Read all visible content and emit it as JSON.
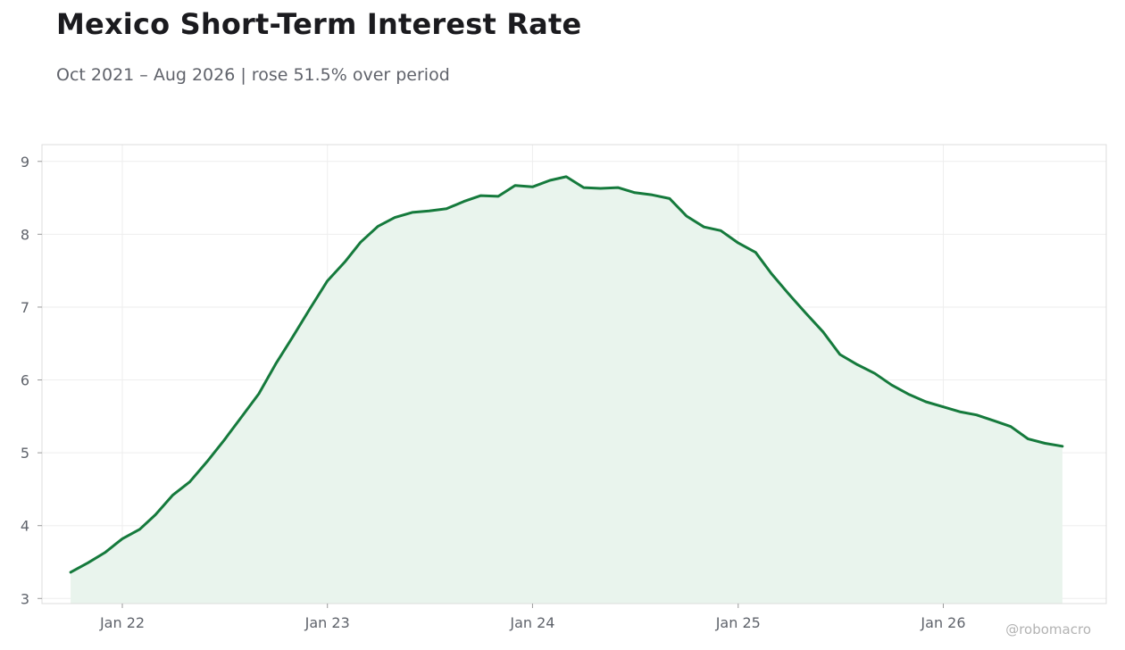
{
  "chart_data": {
    "type": "area",
    "title": "Mexico Short-Term Interest Rate",
    "subtitle": "Oct 2021 – Aug 2026 | rose 51.5% over period",
    "xlabel": "",
    "ylabel": "",
    "x_ticks": [
      {
        "date": "2022-01-01",
        "label": "Jan 22"
      },
      {
        "date": "2023-01-01",
        "label": "Jan 23"
      },
      {
        "date": "2024-01-01",
        "label": "Jan 24"
      },
      {
        "date": "2025-01-01",
        "label": "Jan 25"
      },
      {
        "date": "2026-01-01",
        "label": "Jan 26"
      }
    ],
    "y_ticks": [
      3,
      4,
      5,
      6,
      7,
      8,
      9
    ],
    "xlim": [
      "2021-08-11",
      "2026-10-18"
    ],
    "ylim": [
      2.93,
      9.23
    ],
    "grid": true,
    "legend": "none",
    "series": [
      {
        "color": "#157a3c",
        "fill": "#e9f4ed",
        "points": [
          [
            "2021-10-01",
            3.36
          ],
          [
            "2021-11-01",
            3.49
          ],
          [
            "2021-12-01",
            3.63
          ],
          [
            "2022-01-01",
            3.82
          ],
          [
            "2022-02-01",
            3.95
          ],
          [
            "2022-03-01",
            4.15
          ],
          [
            "2022-04-01",
            4.42
          ],
          [
            "2022-05-01",
            4.6
          ],
          [
            "2022-06-01",
            4.88
          ],
          [
            "2022-07-01",
            5.17
          ],
          [
            "2022-08-01",
            5.49
          ],
          [
            "2022-09-01",
            5.81
          ],
          [
            "2022-10-01",
            6.22
          ],
          [
            "2022-11-01",
            6.6
          ],
          [
            "2022-12-01",
            6.98
          ],
          [
            "2023-01-01",
            7.36
          ],
          [
            "2023-02-01",
            7.62
          ],
          [
            "2023-03-01",
            7.89
          ],
          [
            "2023-04-01",
            8.11
          ],
          [
            "2023-05-01",
            8.23
          ],
          [
            "2023-06-01",
            8.3
          ],
          [
            "2023-07-01",
            8.32
          ],
          [
            "2023-08-01",
            8.35
          ],
          [
            "2023-09-01",
            8.45
          ],
          [
            "2023-10-01",
            8.53
          ],
          [
            "2023-11-01",
            8.52
          ],
          [
            "2023-12-01",
            8.67
          ],
          [
            "2024-01-01",
            8.65
          ],
          [
            "2024-02-01",
            8.74
          ],
          [
            "2024-03-01",
            8.79
          ],
          [
            "2024-04-01",
            8.64
          ],
          [
            "2024-05-01",
            8.63
          ],
          [
            "2024-06-01",
            8.64
          ],
          [
            "2024-07-01",
            8.57
          ],
          [
            "2024-08-01",
            8.54
          ],
          [
            "2024-09-01",
            8.49
          ],
          [
            "2024-10-01",
            8.25
          ],
          [
            "2024-11-01",
            8.1
          ],
          [
            "2024-12-01",
            8.05
          ],
          [
            "2025-01-01",
            7.88
          ],
          [
            "2025-02-01",
            7.75
          ],
          [
            "2025-03-01",
            7.46
          ],
          [
            "2025-04-01",
            7.18
          ],
          [
            "2025-05-01",
            6.92
          ],
          [
            "2025-06-01",
            6.66
          ],
          [
            "2025-07-01",
            6.35
          ],
          [
            "2025-08-01",
            6.21
          ],
          [
            "2025-09-01",
            6.09
          ],
          [
            "2025-10-01",
            5.93
          ],
          [
            "2025-11-01",
            5.8
          ],
          [
            "2025-12-01",
            5.7
          ],
          [
            "2026-01-01",
            5.63
          ],
          [
            "2026-02-01",
            5.56
          ],
          [
            "2026-03-01",
            5.52
          ],
          [
            "2026-04-01",
            5.44
          ],
          [
            "2026-05-01",
            5.36
          ],
          [
            "2026-06-01",
            5.19
          ],
          [
            "2026-07-01",
            5.13
          ],
          [
            "2026-08-01",
            5.09
          ]
        ]
      }
    ]
  },
  "watermark": "@robomacro"
}
